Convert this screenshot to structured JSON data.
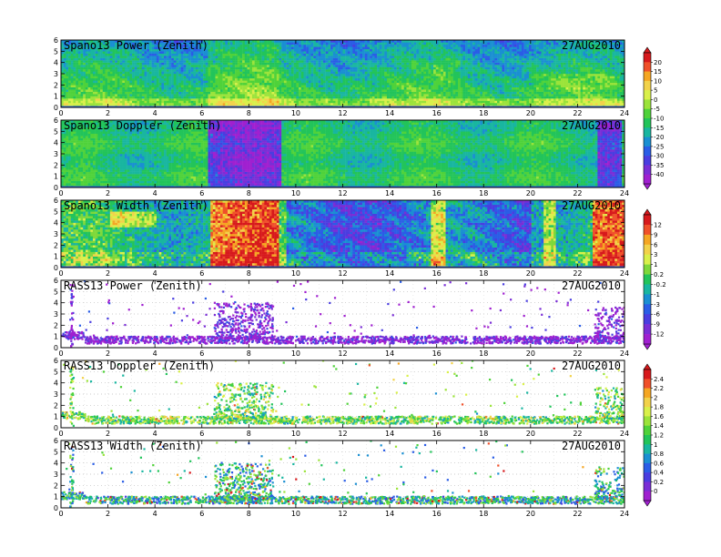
{
  "chart_data": [
    {
      "type": "heatmap",
      "title": "Spano13 Power (Zenith)",
      "date": "27AUG2010",
      "variable": "power",
      "x_ticks": [
        "0",
        "2",
        "4",
        "6",
        "8",
        "10",
        "12",
        "14",
        "16",
        "18",
        "20",
        "22",
        "24"
      ],
      "y_ticks": [
        "0",
        "1",
        "2",
        "3",
        "4",
        "5",
        "6"
      ],
      "xlim": [
        0,
        24
      ],
      "ylim": [
        0,
        6
      ],
      "colorbar": "A",
      "dominant_range": [
        -15,
        5
      ]
    },
    {
      "type": "heatmap",
      "title": "Spano13 Doppler (Zenith)",
      "date": "27AUG2010",
      "variable": "doppler",
      "x_ticks": [
        "0",
        "2",
        "4",
        "6",
        "8",
        "10",
        "12",
        "14",
        "16",
        "18",
        "20",
        "22",
        "24"
      ],
      "y_ticks": [
        "0",
        "1",
        "2",
        "3",
        "4",
        "5",
        "6"
      ],
      "xlim": [
        0,
        24
      ],
      "ylim": [
        0,
        6
      ],
      "colorbar": "A",
      "dominant_range": [
        -20,
        -10
      ]
    },
    {
      "type": "heatmap",
      "title": "Spano13 Width (Zenith)",
      "date": "27AUG2010",
      "variable": "width",
      "x_ticks": [
        "0",
        "2",
        "4",
        "6",
        "8",
        "10",
        "12",
        "14",
        "16",
        "18",
        "20",
        "22",
        "24"
      ],
      "y_ticks": [
        "0",
        "1",
        "2",
        "3",
        "4",
        "5",
        "6"
      ],
      "xlim": [
        0,
        24
      ],
      "ylim": [
        0,
        6
      ],
      "colorbar": "B",
      "dominant_range": [
        -3,
        3
      ]
    },
    {
      "type": "scatter",
      "title": "RASS13 Power (Zenith)",
      "date": "27AUG2010",
      "variable": "rass_power",
      "x_ticks": [
        "0",
        "2",
        "4",
        "6",
        "8",
        "10",
        "12",
        "14",
        "16",
        "18",
        "20",
        "22",
        "24"
      ],
      "y_ticks": [
        "0",
        "1",
        "2",
        "3",
        "4",
        "5",
        "6"
      ],
      "xlim": [
        0,
        24
      ],
      "ylim": [
        0,
        6
      ],
      "colorbar": "B",
      "dominant_range": [
        -12,
        -6
      ]
    },
    {
      "type": "scatter",
      "title": "RASS13 Doppler (Zenith)",
      "date": "27AUG2010",
      "variable": "rass_doppler",
      "x_ticks": [
        "0",
        "2",
        "4",
        "6",
        "8",
        "10",
        "12",
        "14",
        "16",
        "18",
        "20",
        "22",
        "24"
      ],
      "y_ticks": [
        "0",
        "1",
        "2",
        "3",
        "4",
        "5",
        "6"
      ],
      "xlim": [
        0,
        24
      ],
      "ylim": [
        0,
        6
      ],
      "colorbar": "C",
      "dominant_range": [
        1.2,
        1.6
      ]
    },
    {
      "type": "scatter",
      "title": "RASS13 Width (Zenith)",
      "date": "27AUG2010",
      "variable": "rass_width",
      "x_ticks": [
        "0",
        "2",
        "4",
        "6",
        "8",
        "10",
        "12",
        "14",
        "16",
        "18",
        "20",
        "22",
        "24"
      ],
      "y_ticks": [
        "0",
        "1",
        "2",
        "3",
        "4",
        "5",
        "6"
      ],
      "xlim": [
        0,
        24
      ],
      "ylim": [
        0,
        6
      ],
      "colorbar": "C",
      "dominant_range": [
        0.8,
        1.4
      ]
    }
  ],
  "colorbars": {
    "A": {
      "labels": [
        "20",
        "15",
        "10",
        "5",
        "0",
        "-5",
        "-10",
        "-15",
        "-20",
        "-25",
        "-30",
        "-35",
        "-40"
      ],
      "colors": [
        "#d7191c",
        "#f0502a",
        "#f5a623",
        "#f2d24a",
        "#d9f04a",
        "#9be33a",
        "#4fd23a",
        "#22c45a",
        "#19b6a0",
        "#1a8fd2",
        "#2a5de6",
        "#4a3de0",
        "#7a2ed6",
        "#a020d0"
      ]
    },
    "B": {
      "labels": [
        "12",
        "9",
        "6",
        "3",
        "1",
        "0.2",
        "-0.2",
        "-1",
        "-3",
        "-6",
        "-9",
        "-12"
      ],
      "colors": [
        "#d7191c",
        "#f0502a",
        "#f5a623",
        "#f2d24a",
        "#d9f04a",
        "#7ed83a",
        "#22c45a",
        "#19b6a0",
        "#1a8fd2",
        "#2a5de6",
        "#4a3de0",
        "#7a2ed6",
        "#a020d0"
      ]
    },
    "C": {
      "labels": [
        "2.4",
        "2.2",
        "2",
        "1.8",
        "1.6",
        "1.4",
        "1.2",
        "1",
        "0.8",
        "0.6",
        "0.4",
        "0.2",
        "0"
      ],
      "colors": [
        "#d7191c",
        "#f0502a",
        "#f5a623",
        "#f2d24a",
        "#d9f04a",
        "#9be33a",
        "#4fd23a",
        "#22c45a",
        "#19b6a0",
        "#1a8fd2",
        "#2a5de6",
        "#4a3de0",
        "#7a2ed6",
        "#a020d0"
      ]
    }
  }
}
